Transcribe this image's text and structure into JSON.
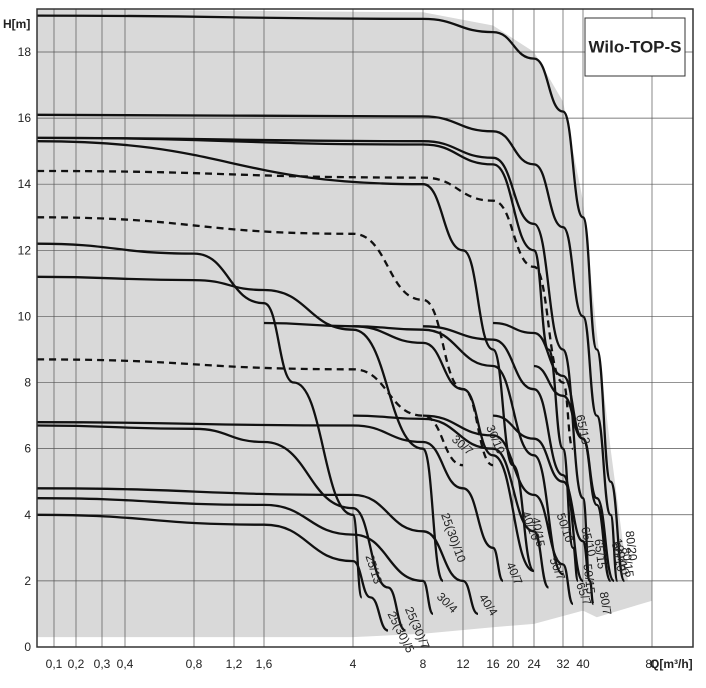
{
  "chart_data": {
    "type": "line",
    "title": "Wilo-TOP-S",
    "xlabel": "Q[m³/h]",
    "ylabel": "H[m]",
    "xlim": [
      0,
      80
    ],
    "ylim": [
      0,
      19.3
    ],
    "x_scale": "nonlinear (extended log)",
    "grid": true,
    "legend": "none (inline curve labels)",
    "x_ticks": [
      "0,1",
      "0,2",
      "0,3",
      "0,4",
      "0,8",
      "1,2",
      "1,6",
      "4",
      "8",
      "12",
      "16",
      "20",
      "24",
      "32",
      "40",
      "80"
    ],
    "y_ticks": [
      "0",
      "2",
      "4",
      "6",
      "8",
      "10",
      "12",
      "14",
      "16",
      "18"
    ],
    "envelope_fill": "#d9d9d9",
    "series": [
      {
        "name": "80/20",
        "style": "solid",
        "points": [
          [
            0,
            19.1
          ],
          [
            8,
            19.0
          ],
          [
            16,
            18.6
          ],
          [
            24,
            17.8
          ],
          [
            32,
            16.2
          ],
          [
            40,
            13.0
          ],
          [
            48,
            9.0
          ],
          [
            56,
            5.0
          ],
          [
            64,
            2.0
          ]
        ]
      },
      {
        "name": "80/15",
        "style": "solid",
        "points": [
          [
            0,
            16.1
          ],
          [
            8,
            16.05
          ],
          [
            16,
            15.6
          ],
          [
            24,
            14.6
          ],
          [
            32,
            12.7
          ],
          [
            40,
            10.0
          ],
          [
            48,
            7.0
          ],
          [
            56,
            4.0
          ],
          [
            60,
            2.0
          ]
        ]
      },
      {
        "name": "100/10",
        "style": "solid",
        "points": [
          [
            24,
            8.5
          ],
          [
            32,
            7.6
          ],
          [
            40,
            6.3
          ],
          [
            48,
            4.5
          ],
          [
            58,
            2.0
          ]
        ]
      },
      {
        "name": "80/10",
        "style": "solid",
        "points": [
          [
            16,
            9.8
          ],
          [
            24,
            9.5
          ],
          [
            32,
            8.2
          ],
          [
            40,
            6.3
          ],
          [
            48,
            4.3
          ],
          [
            56,
            2.0
          ]
        ]
      },
      {
        "name": "80/7",
        "style": "solid",
        "points": [
          [
            16,
            7.0
          ],
          [
            24,
            6.3
          ],
          [
            32,
            5.0
          ],
          [
            40,
            3.2
          ],
          [
            44,
            2.0
          ],
          [
            46,
            1.3
          ]
        ]
      },
      {
        "name": "65/15",
        "style": "solid",
        "points": [
          [
            0,
            15.4
          ],
          [
            8,
            15.3
          ],
          [
            16,
            14.8
          ],
          [
            24,
            12.8
          ],
          [
            32,
            9.0
          ],
          [
            40,
            4.5
          ],
          [
            44,
            2.0
          ]
        ]
      },
      {
        "name": "65/13",
        "style": "dashed",
        "points": [
          [
            0,
            14.4
          ],
          [
            8,
            14.2
          ],
          [
            16,
            13.5
          ],
          [
            24,
            11.5
          ],
          [
            32,
            8.0
          ],
          [
            36,
            6.0
          ]
        ]
      },
      {
        "name": "65/10",
        "style": "solid",
        "points": [
          [
            8,
            9.7
          ],
          [
            16,
            9.3
          ],
          [
            24,
            7.8
          ],
          [
            32,
            5.2
          ],
          [
            40,
            2.0
          ]
        ]
      },
      {
        "name": "65/7",
        "style": "solid",
        "points": [
          [
            8,
            7.0
          ],
          [
            16,
            6.4
          ],
          [
            24,
            4.6
          ],
          [
            32,
            2.5
          ],
          [
            36,
            1.3
          ]
        ]
      },
      {
        "name": "50/15",
        "style": "solid",
        "points": [
          [
            0,
            15.4
          ],
          [
            8,
            15.2
          ],
          [
            16,
            14.6
          ],
          [
            24,
            12.0
          ],
          [
            28,
            9.0
          ],
          [
            32,
            6.0
          ],
          [
            36,
            3.0
          ],
          [
            38,
            2.0
          ]
        ]
      },
      {
        "name": "50/10",
        "style": "solid",
        "points": [
          [
            4,
            9.7
          ],
          [
            8,
            9.6
          ],
          [
            16,
            8.5
          ],
          [
            24,
            5.8
          ],
          [
            32,
            2.2
          ]
        ]
      },
      {
        "name": "50/7",
        "style": "solid",
        "points": [
          [
            4,
            7.0
          ],
          [
            8,
            6.9
          ],
          [
            16,
            6.0
          ],
          [
            24,
            3.5
          ],
          [
            28,
            1.8
          ]
        ]
      },
      {
        "name": "40/15",
        "style": "solid",
        "points": [
          [
            0,
            15.3
          ],
          [
            8,
            14.0
          ],
          [
            12,
            12.0
          ],
          [
            16,
            9.0
          ],
          [
            20,
            5.5
          ],
          [
            24,
            2.3
          ]
        ]
      },
      {
        "name": "40/10",
        "style": "solid",
        "points": [
          [
            1.6,
            9.8
          ],
          [
            4,
            9.7
          ],
          [
            8,
            9.2
          ],
          [
            12,
            7.8
          ],
          [
            16,
            5.8
          ],
          [
            24,
            2.3
          ]
        ]
      },
      {
        "name": "40/7",
        "style": "solid",
        "points": [
          [
            0,
            6.8
          ],
          [
            4,
            6.7
          ],
          [
            8,
            6.2
          ],
          [
            12,
            4.8
          ],
          [
            16,
            3.0
          ],
          [
            18,
            2.0
          ]
        ]
      },
      {
        "name": "40/4",
        "style": "solid",
        "points": [
          [
            0,
            4.8
          ],
          [
            4,
            4.6
          ],
          [
            8,
            3.5
          ],
          [
            12,
            2.0
          ],
          [
            14,
            1.0
          ]
        ]
      },
      {
        "name": "30/10",
        "style": "dashed",
        "points": [
          [
            0,
            13.0
          ],
          [
            4,
            12.5
          ],
          [
            8,
            10.5
          ],
          [
            12,
            7.8
          ],
          [
            16,
            5.5
          ]
        ]
      },
      {
        "name": "30/7",
        "style": "dashed",
        "points": [
          [
            0,
            8.7
          ],
          [
            4,
            8.4
          ],
          [
            8,
            7.0
          ],
          [
            12,
            5.5
          ]
        ]
      },
      {
        "name": "30/4",
        "style": "solid",
        "points": [
          [
            0,
            4.5
          ],
          [
            1.6,
            4.3
          ],
          [
            4,
            3.4
          ],
          [
            8,
            2.0
          ],
          [
            9,
            1.0
          ]
        ]
      },
      {
        "name": "25(30)/10",
        "style": "solid",
        "points": [
          [
            0,
            11.2
          ],
          [
            0.8,
            11.1
          ],
          [
            1.6,
            10.8
          ],
          [
            4,
            9.6
          ],
          [
            8,
            6.0
          ],
          [
            10,
            2.0
          ]
        ]
      },
      {
        "name": "25(30)/7",
        "style": "solid",
        "points": [
          [
            0,
            6.7
          ],
          [
            0.8,
            6.6
          ],
          [
            1.6,
            6.2
          ],
          [
            4,
            4.2
          ],
          [
            6,
            1.8
          ],
          [
            7,
            0.5
          ]
        ]
      },
      {
        "name": "25(30)/5",
        "style": "solid",
        "points": [
          [
            0,
            4.0
          ],
          [
            1.6,
            3.7
          ],
          [
            4,
            2.6
          ],
          [
            5,
            1.5
          ],
          [
            6,
            0.5
          ]
        ]
      },
      {
        "name": "25/13",
        "style": "solid",
        "points": [
          [
            0,
            12.2
          ],
          [
            0.8,
            11.9
          ],
          [
            1.6,
            10.4
          ],
          [
            2.4,
            8.0
          ],
          [
            4,
            4.0
          ],
          [
            4.5,
            1.5
          ]
        ]
      }
    ]
  }
}
